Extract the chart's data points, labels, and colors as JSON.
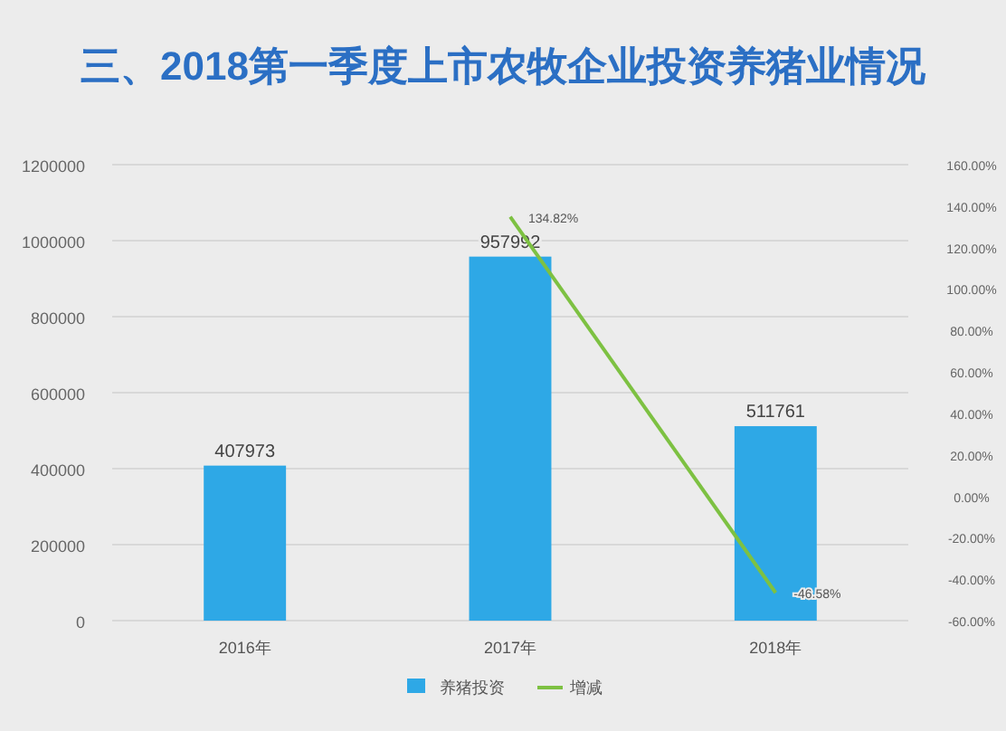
{
  "chart_data": {
    "type": "bar",
    "title": "三、2018第一季度上市农牧企业投资养猪业情况",
    "categories": [
      "2016年",
      "2017年",
      "2018年"
    ],
    "series": [
      {
        "name": "养猪投资",
        "color": "#2ea8e6",
        "values": [
          407973,
          957992,
          511761
        ],
        "value_labels": [
          "407973",
          "957992",
          "511761"
        ]
      },
      {
        "name": "增减",
        "type": "line",
        "axis": "y2",
        "color": "#7dc142",
        "values": [
          null,
          134.82,
          -46.58
        ],
        "value_labels": [
          null,
          "134.82%",
          "-46.58%"
        ],
        "marker": "none"
      }
    ],
    "ylim": [
      0,
      1200000
    ],
    "yticks": [
      0,
      200000,
      400000,
      600000,
      800000,
      1000000,
      1200000
    ],
    "y2lim": [
      -60,
      160
    ],
    "y2ticks": [
      {
        "value": -60,
        "label": "-60.00%"
      },
      {
        "value": -40,
        "label": "-40.00%"
      },
      {
        "value": -20,
        "label": "-20.00%"
      },
      {
        "value": 0,
        "label": "0.00%"
      },
      {
        "value": 20,
        "label": "20.00%"
      },
      {
        "value": 40,
        "label": "40.00%"
      },
      {
        "value": 60,
        "label": "60.00%"
      },
      {
        "value": 80,
        "label": "80.00%"
      },
      {
        "value": 100,
        "label": "100.00%"
      },
      {
        "value": 120,
        "label": "120.00%"
      },
      {
        "value": 140,
        "label": "140.00%"
      },
      {
        "value": 160,
        "label": "160.00%"
      }
    ],
    "grid": "y",
    "legend": "bottom"
  }
}
